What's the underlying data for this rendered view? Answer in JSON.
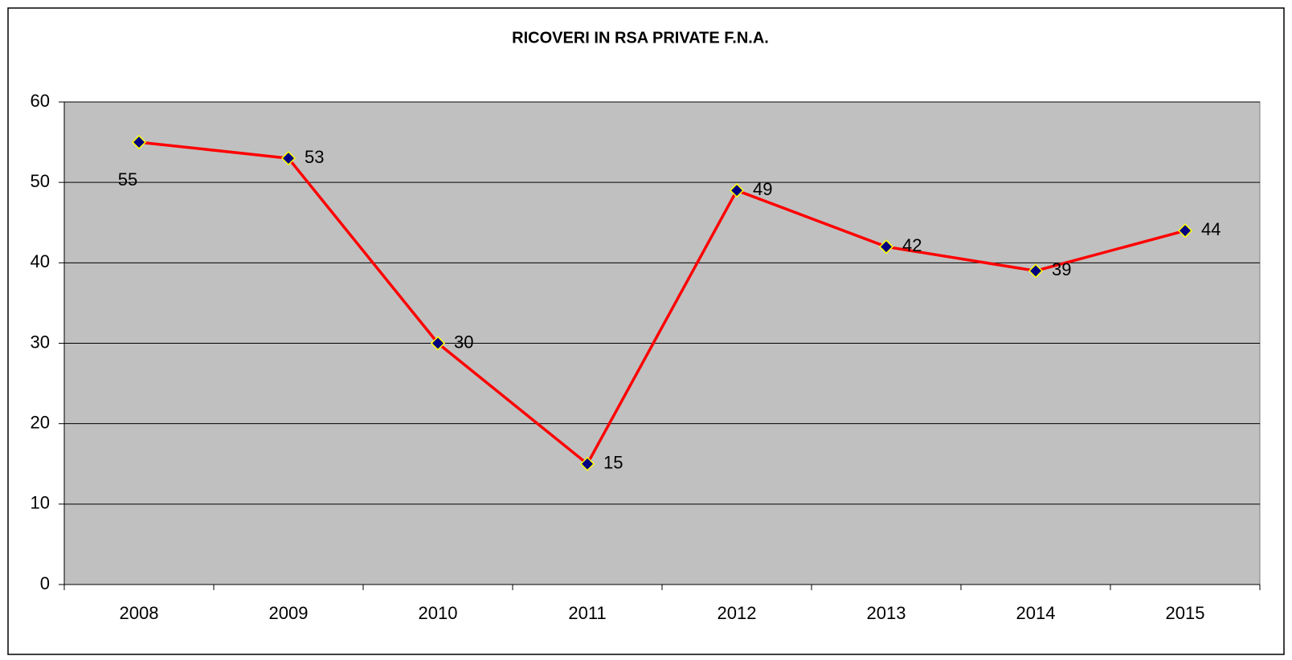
{
  "chart_data": {
    "type": "line",
    "title": "RICOVERI IN RSA PRIVATE F.N.A.",
    "categories": [
      "2008",
      "2009",
      "2010",
      "2011",
      "2012",
      "2013",
      "2014",
      "2015"
    ],
    "series": [
      {
        "name": "RICOVERI",
        "color": "#ff0000",
        "marker_color": "#000080",
        "marker_edge": "#ffff00",
        "values": [
          55,
          53,
          30,
          15,
          49,
          42,
          39,
          44
        ]
      }
    ],
    "ylim": [
      0,
      60
    ],
    "yticks": [
      0,
      10,
      20,
      30,
      40,
      50,
      60
    ],
    "grid": true,
    "plot_background": "#c0c0c0"
  }
}
